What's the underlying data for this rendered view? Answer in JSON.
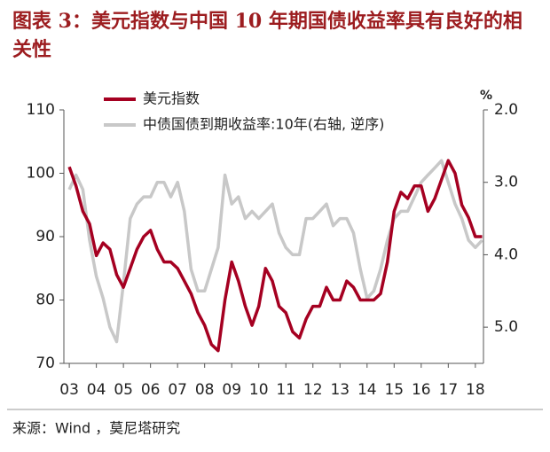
{
  "chart_data": {
    "type": "line",
    "title": "图表 3：美元指数与中国 10 年期国债收益率具有良好的相关性",
    "source": "来源：Wind ，莫尼塔研究",
    "y2_unit": "%",
    "x": [
      3,
      3.25,
      3.5,
      3.75,
      4,
      4.25,
      4.5,
      4.75,
      5,
      5.25,
      5.5,
      5.75,
      6,
      6.25,
      6.5,
      6.75,
      7,
      7.25,
      7.5,
      7.75,
      8,
      8.25,
      8.5,
      8.75,
      9,
      9.25,
      9.5,
      9.75,
      10,
      10.25,
      10.5,
      10.75,
      11,
      11.25,
      11.5,
      11.75,
      12,
      12.25,
      12.5,
      12.75,
      13,
      13.25,
      13.5,
      13.75,
      14,
      14.25,
      14.5,
      14.75,
      15,
      15.25,
      15.5,
      15.75,
      16,
      16.25,
      16.5,
      16.75,
      17,
      17.25,
      17.5,
      17.75,
      18,
      18.25
    ],
    "xlim": [
      2.8,
      18.3
    ],
    "xticks": [
      {
        "value": 3,
        "label": "03"
      },
      {
        "value": 4,
        "label": "04"
      },
      {
        "value": 5,
        "label": "05"
      },
      {
        "value": 6,
        "label": "06"
      },
      {
        "value": 7,
        "label": "07"
      },
      {
        "value": 8,
        "label": "08"
      },
      {
        "value": 9,
        "label": "09"
      },
      {
        "value": 10,
        "label": "10"
      },
      {
        "value": 11,
        "label": "11"
      },
      {
        "value": 12,
        "label": "12"
      },
      {
        "value": 13,
        "label": "13"
      },
      {
        "value": 14,
        "label": "14"
      },
      {
        "value": 15,
        "label": "15"
      },
      {
        "value": 16,
        "label": "16"
      },
      {
        "value": 17,
        "label": "17"
      },
      {
        "value": 18,
        "label": "18"
      }
    ],
    "ylim": [
      70,
      110
    ],
    "yticks": [
      70,
      80,
      90,
      100,
      110
    ],
    "y2lim": [
      2.0,
      5.5
    ],
    "y2_inverted": true,
    "y2ticks": [
      {
        "value": 2,
        "label": "2.0"
      },
      {
        "value": 3,
        "label": "3.0"
      },
      {
        "value": 4,
        "label": "4.0"
      },
      {
        "value": 5,
        "label": "5.0"
      }
    ],
    "legend": "top-left",
    "series": [
      {
        "name": "美元指数",
        "color": "#a50021",
        "values": [
          101,
          98,
          94,
          92,
          87,
          89,
          88,
          84,
          82,
          85,
          88,
          90,
          91,
          88,
          86,
          86,
          85,
          83,
          81,
          78,
          76,
          73,
          72,
          80,
          86,
          83,
          79,
          76,
          79,
          85,
          83,
          79,
          78,
          75,
          74,
          77,
          79,
          79,
          82,
          80,
          80,
          83,
          82,
          80,
          80,
          80,
          81,
          86,
          94,
          97,
          96,
          98,
          98,
          94,
          96,
          99,
          102,
          100,
          95,
          93,
          90,
          90
        ]
      },
      {
        "name": "中债国债到期收益率:10年(右轴, 逆序)",
        "color": "#c8c8c8",
        "axis": "y2",
        "values": [
          3.1,
          2.9,
          3.1,
          3.8,
          4.3,
          4.6,
          5.0,
          5.2,
          4.4,
          3.5,
          3.3,
          3.2,
          3.2,
          3.0,
          3.0,
          3.2,
          3.0,
          3.4,
          4.2,
          4.5,
          4.5,
          4.2,
          3.9,
          2.9,
          3.3,
          3.2,
          3.5,
          3.4,
          3.5,
          3.4,
          3.3,
          3.7,
          3.9,
          4.0,
          4.0,
          3.5,
          3.5,
          3.4,
          3.3,
          3.6,
          3.5,
          3.5,
          3.7,
          4.2,
          4.6,
          4.5,
          4.2,
          3.8,
          3.5,
          3.4,
          3.4,
          3.2,
          3.0,
          2.9,
          2.8,
          2.7,
          3.0,
          3.3,
          3.5,
          3.8,
          3.9,
          3.8
        ]
      }
    ]
  }
}
